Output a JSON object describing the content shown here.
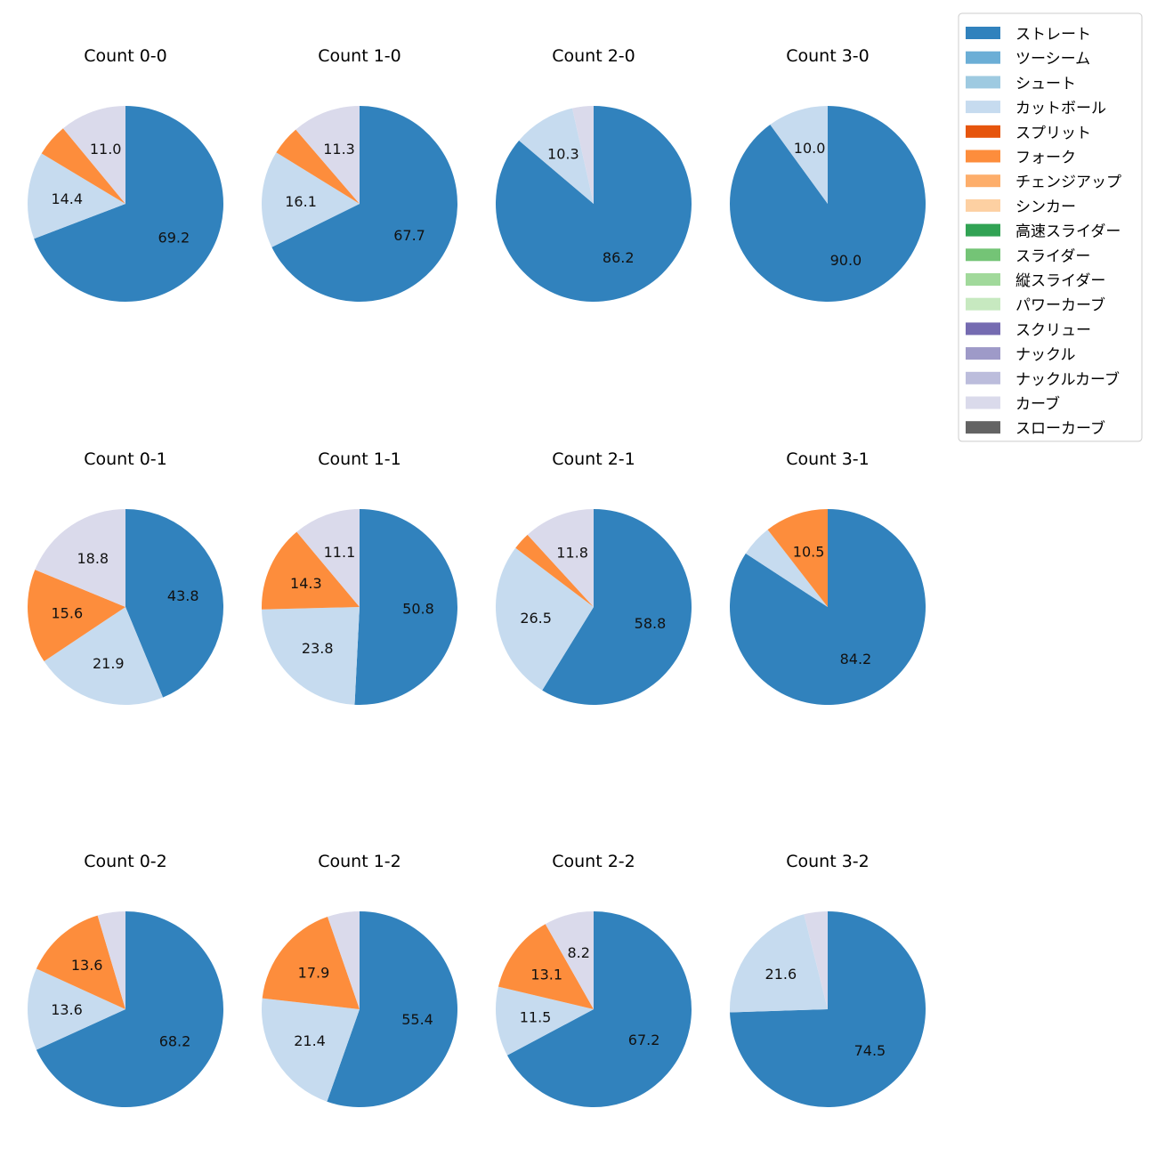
{
  "legend": {
    "entries": [
      {
        "label": "ストレート",
        "color": "#3182bd"
      },
      {
        "label": "ツーシーム",
        "color": "#6baed6"
      },
      {
        "label": "シュート",
        "color": "#9ecae1"
      },
      {
        "label": "カットボール",
        "color": "#c6dbef"
      },
      {
        "label": "スプリット",
        "color": "#e6550d"
      },
      {
        "label": "フォーク",
        "color": "#fd8d3c"
      },
      {
        "label": "チェンジアップ",
        "color": "#fdae6b"
      },
      {
        "label": "シンカー",
        "color": "#fdd0a2"
      },
      {
        "label": "高速スライダー",
        "color": "#31a354"
      },
      {
        "label": "スライダー",
        "color": "#74c476"
      },
      {
        "label": "縦スライダー",
        "color": "#a1d99b"
      },
      {
        "label": "パワーカーブ",
        "color": "#c7e9c0"
      },
      {
        "label": "スクリュー",
        "color": "#756bb1"
      },
      {
        "label": "ナックル",
        "color": "#9e9ac8"
      },
      {
        "label": "ナックルカーブ",
        "color": "#bcbddc"
      },
      {
        "label": "カーブ",
        "color": "#dadaeb"
      },
      {
        "label": "スローカーブ",
        "color": "#636363"
      }
    ]
  },
  "chart_data": [
    {
      "type": "pie",
      "title": "Count 0-0",
      "slices": [
        {
          "label": "ストレート",
          "value": 69.2,
          "display": "69.2"
        },
        {
          "label": "カットボール",
          "value": 14.4,
          "display": "14.4"
        },
        {
          "label": "フォーク",
          "value": 5.4,
          "display": ""
        },
        {
          "label": "カーブ",
          "value": 11.0,
          "display": "11.0"
        }
      ]
    },
    {
      "type": "pie",
      "title": "Count 1-0",
      "slices": [
        {
          "label": "ストレート",
          "value": 67.7,
          "display": "67.7"
        },
        {
          "label": "カットボール",
          "value": 16.1,
          "display": "16.1"
        },
        {
          "label": "フォーク",
          "value": 4.9,
          "display": ""
        },
        {
          "label": "カーブ",
          "value": 11.3,
          "display": "11.3"
        }
      ]
    },
    {
      "type": "pie",
      "title": "Count 2-0",
      "slices": [
        {
          "label": "ストレート",
          "value": 86.2,
          "display": "86.2"
        },
        {
          "label": "カットボール",
          "value": 10.3,
          "display": "10.3"
        },
        {
          "label": "カーブ",
          "value": 3.5,
          "display": ""
        }
      ]
    },
    {
      "type": "pie",
      "title": "Count 3-0",
      "slices": [
        {
          "label": "ストレート",
          "value": 90.0,
          "display": "90.0"
        },
        {
          "label": "カットボール",
          "value": 10.0,
          "display": "10.0"
        }
      ]
    },
    {
      "type": "pie",
      "title": "Count 0-1",
      "slices": [
        {
          "label": "ストレート",
          "value": 43.8,
          "display": "43.8"
        },
        {
          "label": "カットボール",
          "value": 21.9,
          "display": "21.9"
        },
        {
          "label": "フォーク",
          "value": 15.6,
          "display": "15.6"
        },
        {
          "label": "カーブ",
          "value": 18.8,
          "display": "18.8"
        }
      ]
    },
    {
      "type": "pie",
      "title": "Count 1-1",
      "slices": [
        {
          "label": "ストレート",
          "value": 50.8,
          "display": "50.8"
        },
        {
          "label": "カットボール",
          "value": 23.8,
          "display": "23.8"
        },
        {
          "label": "フォーク",
          "value": 14.3,
          "display": "14.3"
        },
        {
          "label": "カーブ",
          "value": 11.1,
          "display": "11.1"
        }
      ]
    },
    {
      "type": "pie",
      "title": "Count 2-1",
      "slices": [
        {
          "label": "ストレート",
          "value": 58.8,
          "display": "58.8"
        },
        {
          "label": "カットボール",
          "value": 26.5,
          "display": "26.5"
        },
        {
          "label": "フォーク",
          "value": 2.9,
          "display": ""
        },
        {
          "label": "カーブ",
          "value": 11.8,
          "display": "11.8"
        }
      ]
    },
    {
      "type": "pie",
      "title": "Count 3-1",
      "slices": [
        {
          "label": "ストレート",
          "value": 84.2,
          "display": "84.2"
        },
        {
          "label": "カットボール",
          "value": 5.3,
          "display": ""
        },
        {
          "label": "フォーク",
          "value": 10.5,
          "display": "10.5"
        }
      ]
    },
    {
      "type": "pie",
      "title": "Count 0-2",
      "slices": [
        {
          "label": "ストレート",
          "value": 68.2,
          "display": "68.2"
        },
        {
          "label": "カットボール",
          "value": 13.6,
          "display": "13.6"
        },
        {
          "label": "フォーク",
          "value": 13.6,
          "display": "13.6"
        },
        {
          "label": "カーブ",
          "value": 4.6,
          "display": ""
        }
      ]
    },
    {
      "type": "pie",
      "title": "Count 1-2",
      "slices": [
        {
          "label": "ストレート",
          "value": 55.4,
          "display": "55.4"
        },
        {
          "label": "カットボール",
          "value": 21.4,
          "display": "21.4"
        },
        {
          "label": "フォーク",
          "value": 17.9,
          "display": "17.9"
        },
        {
          "label": "カーブ",
          "value": 5.3,
          "display": ""
        }
      ]
    },
    {
      "type": "pie",
      "title": "Count 2-2",
      "slices": [
        {
          "label": "ストレート",
          "value": 67.2,
          "display": "67.2"
        },
        {
          "label": "カットボール",
          "value": 11.5,
          "display": "11.5"
        },
        {
          "label": "フォーク",
          "value": 13.1,
          "display": "13.1"
        },
        {
          "label": "カーブ",
          "value": 8.2,
          "display": "8.2"
        }
      ]
    },
    {
      "type": "pie",
      "title": "Count 3-2",
      "slices": [
        {
          "label": "ストレート",
          "value": 74.5,
          "display": "74.5"
        },
        {
          "label": "カットボール",
          "value": 21.6,
          "display": "21.6"
        },
        {
          "label": "カーブ",
          "value": 3.9,
          "display": ""
        }
      ]
    }
  ]
}
